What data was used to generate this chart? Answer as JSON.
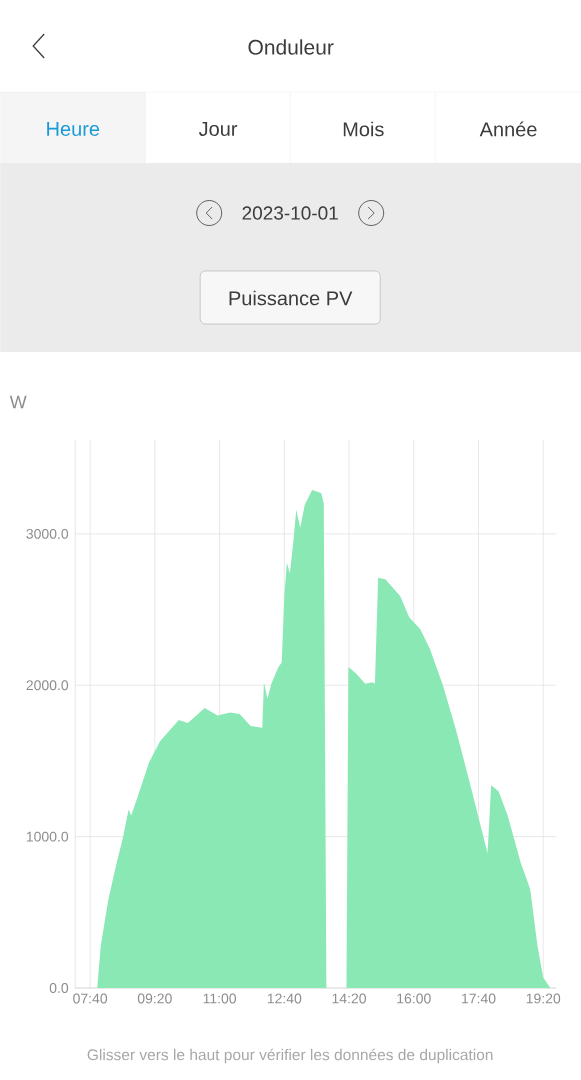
{
  "chart_data": {
    "type": "area",
    "title": "Onduleur",
    "subtitle": "2023-10-01",
    "ylabel": "W",
    "annotations": [
      "Heure",
      "Jour",
      "Mois",
      "Année",
      "Puissance PV",
      "Glisser vers le haut pour vérifier les données de duplication"
    ],
    "x": [
      7.7,
      7.85,
      7.942,
      8.133,
      8.325,
      8.517,
      8.658,
      8.725,
      8.9,
      9.183,
      9.467,
      9.95,
      10.183,
      10.617,
      10.95,
      11.275,
      11.517,
      11.8,
      12.1,
      12.142,
      12.233,
      12.333,
      12.517,
      12.6,
      12.667,
      12.733,
      12.81,
      12.9,
      12.975,
      13.077,
      13.192,
      13.383,
      13.617,
      13.683,
      13.75,
      14.267,
      14.317,
      14.51,
      14.75,
      14.933,
      15.0,
      15.083,
      15.267,
      15.65,
      15.883,
      16.167,
      16.417,
      16.75,
      17.083,
      17.458,
      17.9,
      17.992,
      18.183,
      18.417,
      18.75,
      19.0,
      19.183,
      19.333,
      19.517
    ],
    "values": [
      0,
      0,
      280,
      580,
      800,
      1000,
      1180,
      1140,
      1270,
      1490,
      1630,
      1770,
      1750,
      1850,
      1800,
      1820,
      1810,
      1730,
      1720,
      2020,
      1910,
      2010,
      2120,
      2150,
      2590,
      2810,
      2740,
      2950,
      3160,
      3040,
      3190,
      3290,
      3270,
      3200,
      0,
      0,
      2120,
      2080,
      2010,
      2020,
      2010,
      2710,
      2700,
      2590,
      2450,
      2370,
      2240,
      2000,
      1710,
      1340,
      890,
      1340,
      1300,
      1140,
      830,
      650,
      280,
      70,
      0
    ],
    "color": "#8ae8b5",
    "xlim": [
      7.283,
      19.667
    ],
    "xticks": [
      {
        "value": 7.667,
        "label": "07:40"
      },
      {
        "value": 9.333,
        "label": "09:20"
      },
      {
        "value": 11,
        "label": "11:00"
      },
      {
        "value": 12.667,
        "label": "12:40"
      },
      {
        "value": 14.333,
        "label": "14:20"
      },
      {
        "value": 16,
        "label": "16:00"
      },
      {
        "value": 17.667,
        "label": "17:40"
      },
      {
        "value": 19.333,
        "label": "19:20"
      }
    ],
    "ylim": [
      0,
      3620
    ],
    "yticks": [
      {
        "value": 0,
        "label": "0.0"
      },
      {
        "value": 1000,
        "label": "1000.0"
      },
      {
        "value": 2000,
        "label": "2000.0"
      },
      {
        "value": 3000,
        "label": "3000.0"
      }
    ],
    "grid": true
  }
}
